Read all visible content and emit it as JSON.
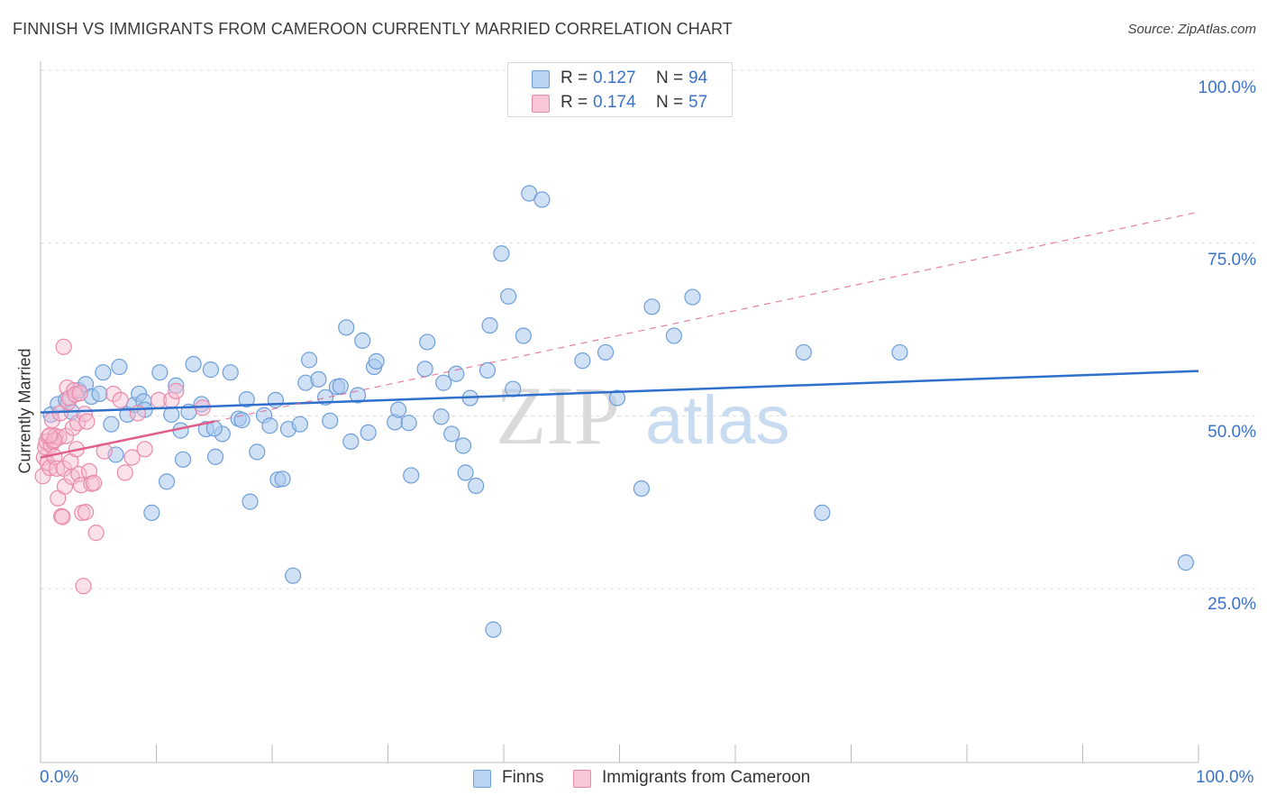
{
  "header": {
    "title": "FINNISH VS IMMIGRANTS FROM CAMEROON CURRENTLY MARRIED CORRELATION CHART",
    "source": "Source: ZipAtlas.com"
  },
  "legend": {
    "rows": [
      {
        "r_label": "R =",
        "r_value": "0.127",
        "n_label": "N =",
        "n_value": "94"
      },
      {
        "r_label": "R =",
        "r_value": "0.174",
        "n_label": "N =",
        "n_value": "57"
      }
    ]
  },
  "bottom_legend": {
    "finns": "Finns",
    "cameroon": "Immigrants from Cameroon"
  },
  "axes": {
    "ylabel": "Currently Married",
    "x_min_label": "0.0%",
    "x_max_label": "100.0%",
    "y_ticks": [
      "100.0%",
      "75.0%",
      "50.0%",
      "25.0%"
    ]
  },
  "watermark": {
    "zip": "ZIP",
    "atlas": "atlas"
  },
  "colors": {
    "finns_fill": "#aac8ee",
    "finns_stroke": "#6e9fd8",
    "finns_line": "#2f6fcd",
    "cam_fill": "#f7bcd0",
    "cam_stroke": "#e88aab",
    "cam_line": "#e0608a",
    "grid": "#dddddd",
    "tick_text": "#3b73c8"
  },
  "chart_data": {
    "type": "scatter",
    "title": "FINNISH VS IMMIGRANTS FROM CAMEROON CURRENTLY MARRIED CORRELATION CHART",
    "xlabel": "",
    "ylabel": "Currently Married",
    "xlim": [
      0,
      100
    ],
    "ylim": [
      0,
      100
    ],
    "y_gridlines": [
      25,
      50,
      75,
      100
    ],
    "grid": true,
    "legend_position": "top-center",
    "series": [
      {
        "name": "Finns",
        "R": 0.127,
        "N": 94,
        "trend": {
          "x": [
            0,
            100
          ],
          "y": [
            50.5,
            56.5
          ]
        },
        "points": [
          [
            0.9,
            50.2
          ],
          [
            1.5,
            51.7
          ],
          [
            2.2,
            52.3
          ],
          [
            3.3,
            53.7
          ],
          [
            2.7,
            50.6
          ],
          [
            3.9,
            54.6
          ],
          [
            4.4,
            52.8
          ],
          [
            5.1,
            53.2
          ],
          [
            5.4,
            56.3
          ],
          [
            6.1,
            48.8
          ],
          [
            6.5,
            44.4
          ],
          [
            6.8,
            57.1
          ],
          [
            7.5,
            50.2
          ],
          [
            8.1,
            51.6
          ],
          [
            8.5,
            53.2
          ],
          [
            8.9,
            52.1
          ],
          [
            9.6,
            36.0
          ],
          [
            10.3,
            56.3
          ],
          [
            10.9,
            40.5
          ],
          [
            11.3,
            50.2
          ],
          [
            11.7,
            54.4
          ],
          [
            12.1,
            47.9
          ],
          [
            12.3,
            43.7
          ],
          [
            12.8,
            50.6
          ],
          [
            13.2,
            57.5
          ],
          [
            13.9,
            51.7
          ],
          [
            14.3,
            48.1
          ],
          [
            14.7,
            56.7
          ],
          [
            15.1,
            44.1
          ],
          [
            15.7,
            47.4
          ],
          [
            16.4,
            56.3
          ],
          [
            17.1,
            49.6
          ],
          [
            17.4,
            49.4
          ],
          [
            17.8,
            52.4
          ],
          [
            18.1,
            37.6
          ],
          [
            18.7,
            44.8
          ],
          [
            19.3,
            50.1
          ],
          [
            19.8,
            48.6
          ],
          [
            20.5,
            40.8
          ],
          [
            20.9,
            40.9
          ],
          [
            21.4,
            48.1
          ],
          [
            21.8,
            26.9
          ],
          [
            22.4,
            48.8
          ],
          [
            22.9,
            54.8
          ],
          [
            23.2,
            58.1
          ],
          [
            24.0,
            55.3
          ],
          [
            24.6,
            52.7
          ],
          [
            25.0,
            49.3
          ],
          [
            25.6,
            54.2
          ],
          [
            25.9,
            54.3
          ],
          [
            26.4,
            62.8
          ],
          [
            26.8,
            46.3
          ],
          [
            27.4,
            53.0
          ],
          [
            27.8,
            60.9
          ],
          [
            28.3,
            47.6
          ],
          [
            28.8,
            57.1
          ],
          [
            29.0,
            57.9
          ],
          [
            30.6,
            49.1
          ],
          [
            30.9,
            50.9
          ],
          [
            31.8,
            49.0
          ],
          [
            32.0,
            41.4
          ],
          [
            33.2,
            56.8
          ],
          [
            33.4,
            60.7
          ],
          [
            34.6,
            49.9
          ],
          [
            34.8,
            54.8
          ],
          [
            35.5,
            47.4
          ],
          [
            35.9,
            56.1
          ],
          [
            36.5,
            45.7
          ],
          [
            36.7,
            41.8
          ],
          [
            37.1,
            52.6
          ],
          [
            37.6,
            39.9
          ],
          [
            38.6,
            56.6
          ],
          [
            38.8,
            63.1
          ],
          [
            39.8,
            73.5
          ],
          [
            40.8,
            53.9
          ],
          [
            40.4,
            67.3
          ],
          [
            41.7,
            61.6
          ],
          [
            42.2,
            82.2
          ],
          [
            43.3,
            81.3
          ],
          [
            46.8,
            58.0
          ],
          [
            48.8,
            59.2
          ],
          [
            49.8,
            52.6
          ],
          [
            51.9,
            39.5
          ],
          [
            52.8,
            65.8
          ],
          [
            54.7,
            61.6
          ],
          [
            56.3,
            67.2
          ],
          [
            65.9,
            59.2
          ],
          [
            67.5,
            36.0
          ],
          [
            74.2,
            59.2
          ],
          [
            98.9,
            28.8
          ],
          [
            39.1,
            19.1
          ],
          [
            20.3,
            52.3
          ],
          [
            15.0,
            48.2
          ],
          [
            9.0,
            50.9
          ]
        ]
      },
      {
        "name": "Immigrants from Cameroon",
        "R": 0.174,
        "N": 57,
        "trend": {
          "x": [
            0,
            15
          ],
          "y": [
            44.0,
            49.2
          ],
          "extrapolated_to": {
            "x": 100,
            "y": 79.5
          }
        },
        "points": [
          [
            0.2,
            41.3
          ],
          [
            0.3,
            44.0
          ],
          [
            0.4,
            45.5
          ],
          [
            0.5,
            46.3
          ],
          [
            0.6,
            43.2
          ],
          [
            0.7,
            47.0
          ],
          [
            0.8,
            42.5
          ],
          [
            0.9,
            45.8
          ],
          [
            1.0,
            49.4
          ],
          [
            1.1,
            46.3
          ],
          [
            1.2,
            44.1
          ],
          [
            1.3,
            47.1
          ],
          [
            1.4,
            42.4
          ],
          [
            1.5,
            38.1
          ],
          [
            1.6,
            46.9
          ],
          [
            1.7,
            50.4
          ],
          [
            1.8,
            35.5
          ],
          [
            1.9,
            35.4
          ],
          [
            2.0,
            42.4
          ],
          [
            2.1,
            39.8
          ],
          [
            2.2,
            47.1
          ],
          [
            2.3,
            54.1
          ],
          [
            2.4,
            52.0
          ],
          [
            2.5,
            52.6
          ],
          [
            2.6,
            43.4
          ],
          [
            2.7,
            41.2
          ],
          [
            2.8,
            48.3
          ],
          [
            2.9,
            53.7
          ],
          [
            3.0,
            53.1
          ],
          [
            3.1,
            45.2
          ],
          [
            3.2,
            49.0
          ],
          [
            3.3,
            41.6
          ],
          [
            3.4,
            53.3
          ],
          [
            3.5,
            40.0
          ],
          [
            3.6,
            36.0
          ],
          [
            3.7,
            25.4
          ],
          [
            3.8,
            50.3
          ],
          [
            3.9,
            36.1
          ],
          [
            4.0,
            49.2
          ],
          [
            4.2,
            42.0
          ],
          [
            4.4,
            40.2
          ],
          [
            4.6,
            40.3
          ],
          [
            4.8,
            33.1
          ],
          [
            5.5,
            44.9
          ],
          [
            6.3,
            53.2
          ],
          [
            6.9,
            52.3
          ],
          [
            7.3,
            41.8
          ],
          [
            7.9,
            44.0
          ],
          [
            8.4,
            50.4
          ],
          [
            9.0,
            45.2
          ],
          [
            10.2,
            52.3
          ],
          [
            11.3,
            52.3
          ],
          [
            11.7,
            53.6
          ],
          [
            14.0,
            51.2
          ],
          [
            2.0,
            60.0
          ],
          [
            1.2,
            46.5
          ],
          [
            0.8,
            47.2
          ]
        ]
      }
    ]
  }
}
